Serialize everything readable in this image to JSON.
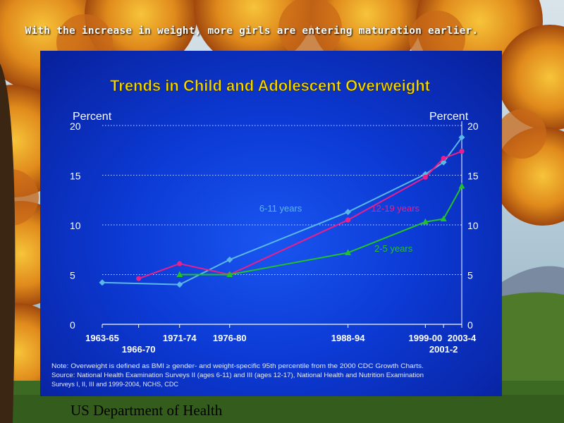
{
  "header": "With the increase in weight, more girls are entering maturation earlier.",
  "footer": "US Department of  Health",
  "chart_data": {
    "type": "line",
    "title": "Trends in Child and Adolescent Overweight",
    "ylabel_left": "Percent",
    "ylabel_right": "Percent",
    "ylim": [
      0,
      20
    ],
    "yticks": [
      0,
      5,
      10,
      15,
      20
    ],
    "x_tick_labels": [
      {
        "label": "1963-65",
        "x": 1964,
        "row": 1
      },
      {
        "label": "1966-70",
        "x": 1968,
        "row": 2
      },
      {
        "label": "1971-74",
        "x": 1972.5,
        "row": 1
      },
      {
        "label": "1976-80",
        "x": 1978,
        "row": 1
      },
      {
        "label": "1988-94",
        "x": 1991,
        "row": 1
      },
      {
        "label": "1999-00",
        "x": 1999.5,
        "row": 1
      },
      {
        "label": "2001-2",
        "x": 2001.5,
        "row": 2
      },
      {
        "label": "2003-4",
        "x": 2003.5,
        "row": 1
      }
    ],
    "series": [
      {
        "name": "6-11 years",
        "color": "#5ab8e8",
        "marker": "diamond",
        "x": [
          1964,
          1972.5,
          1978,
          1991,
          1999.5,
          2001.5,
          2003.5
        ],
        "values": [
          4.2,
          4.0,
          6.5,
          11.3,
          15.1,
          16.3,
          18.8
        ]
      },
      {
        "name": "12-19 years",
        "color": "#e8208a",
        "marker": "circle",
        "x": [
          1968,
          1972.5,
          1978,
          1991,
          1999.5,
          2001.5,
          2003.5
        ],
        "values": [
          4.6,
          6.1,
          5.0,
          10.5,
          14.8,
          16.7,
          17.4
        ]
      },
      {
        "name": "2-5 years",
        "color": "#22c02a",
        "marker": "triangle",
        "x": [
          1972.5,
          1978,
          1991,
          1999.5,
          2001.5,
          2003.5
        ],
        "values": [
          5.0,
          5.0,
          7.2,
          10.3,
          10.6,
          13.9
        ]
      }
    ],
    "note_lines": [
      "Note: Overweight is defined as BMI ≥ gender- and weight-specific 95th percentile from the 2000 CDC Growth Charts.",
      "Source: National Health Examination Surveys II (ages 6-11) and III (ages 12-17), National Health and Nutrition Examination",
      "Surveys I, II, III and 1999-2004, NCHS, CDC"
    ]
  }
}
